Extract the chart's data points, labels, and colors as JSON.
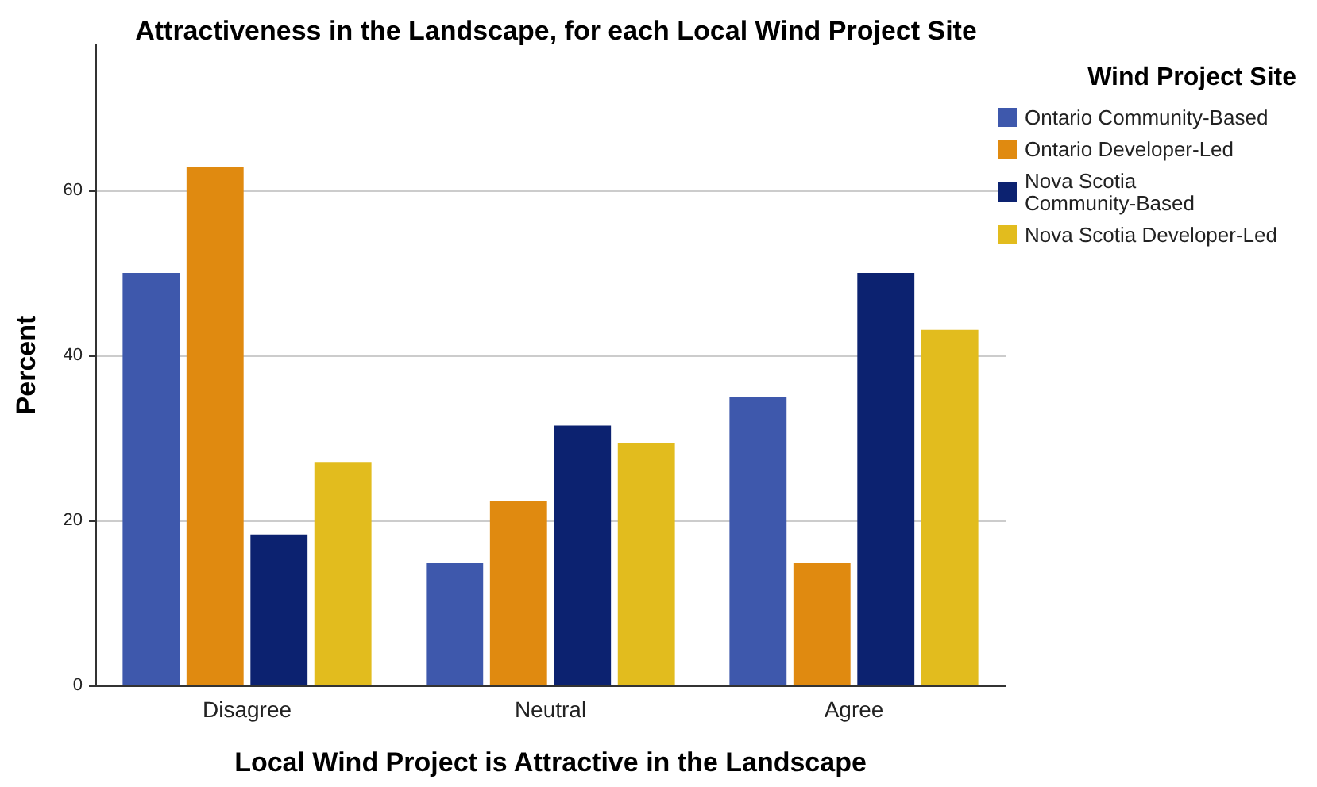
{
  "chart_data": {
    "type": "bar",
    "title": "Attractiveness in the Landscape, for each Local Wind Project Site",
    "xlabel": "Local Wind Project is Attractive in the Landscape",
    "ylabel": "Percent",
    "legend_title": "Wind Project Site",
    "categories": [
      "Disagree",
      "Neutral",
      "Agree"
    ],
    "series": [
      {
        "name": "Ontario Community-Based",
        "color": "#3e58ac",
        "values": [
          50,
          14.8,
          35
        ]
      },
      {
        "name": "Ontario Developer-Led",
        "color": "#e08a10",
        "values": [
          62.8,
          22.3,
          14.8
        ]
      },
      {
        "name": "Nova Scotia Community-Based",
        "color": "#0c2270",
        "values": [
          18.3,
          31.5,
          50
        ]
      },
      {
        "name": "Nova Scotia Developer-Led",
        "color": "#e2bc1e",
        "values": [
          27.1,
          29.4,
          43.1
        ]
      }
    ],
    "ylim": [
      0,
      77.7
    ],
    "yticks": [
      0,
      20,
      40,
      60
    ],
    "grid": "y",
    "legend": "right"
  }
}
